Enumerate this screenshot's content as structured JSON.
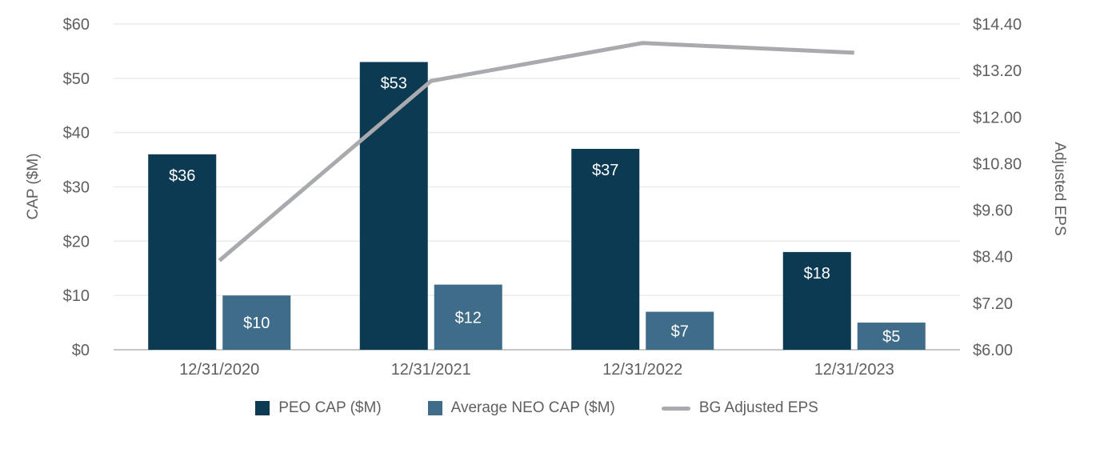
{
  "chart_data": {
    "type": "combo",
    "categories": [
      "12/31/2020",
      "12/31/2021",
      "12/31/2022",
      "12/31/2023"
    ],
    "series": [
      {
        "name": "PEO CAP ($M)",
        "type": "bar",
        "axis": "left",
        "color": "#0d3a53",
        "values": [
          36,
          53,
          37,
          18
        ],
        "labels": [
          "$36",
          "$53",
          "$37",
          "$18"
        ]
      },
      {
        "name": "Average NEO CAP ($M)",
        "type": "bar",
        "axis": "left",
        "color": "#3f6c88",
        "values": [
          10,
          12,
          7,
          5
        ],
        "labels": [
          "$10",
          "$12",
          "$7",
          "$5"
        ]
      },
      {
        "name": "BG Adjusted EPS",
        "type": "line",
        "axis": "right",
        "color": "#a9aaad",
        "values": [
          8.3,
          12.93,
          13.91,
          13.66
        ]
      }
    ],
    "left_axis": {
      "title": "CAP ($M)",
      "min": 0,
      "max": 60,
      "ticks": [
        "$60",
        "$50",
        "$40",
        "$30",
        "$20",
        "$10",
        "$0"
      ]
    },
    "right_axis": {
      "title": "Adjusted EPS",
      "min": 6.0,
      "max": 14.4,
      "ticks": [
        "$14.40",
        "$13.20",
        "$12.00",
        "$10.80",
        "$9.60",
        "$8.40",
        "$7.20",
        "$6.00"
      ]
    },
    "grid": {
      "show": true,
      "color": "#ebebeb",
      "axis_line_color": "#c7c8ca"
    },
    "legend": {
      "position": "bottom"
    },
    "text_color": "#5e5f61",
    "bar_label_color": "#ffffff"
  }
}
